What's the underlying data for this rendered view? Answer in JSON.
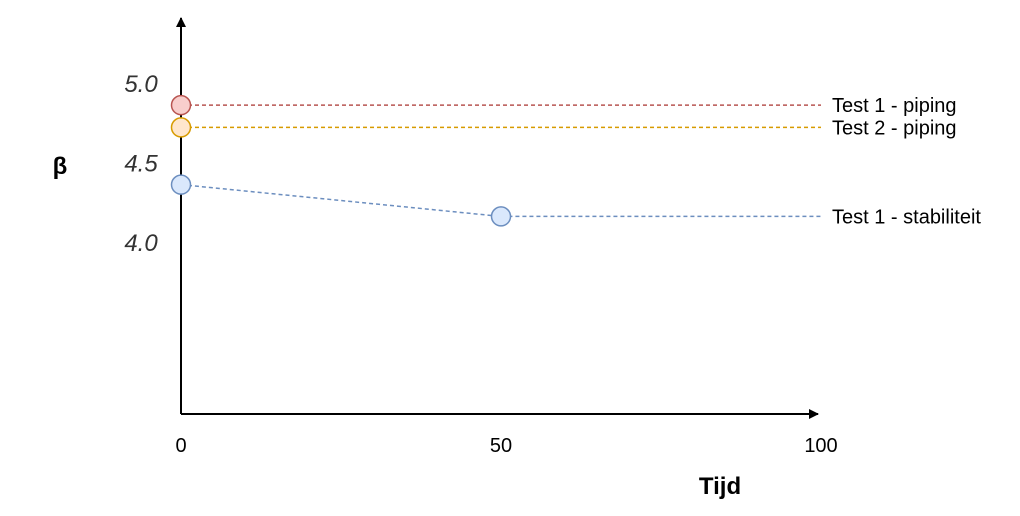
{
  "chart_data": {
    "type": "line",
    "xlabel": "Tijd",
    "ylabel": "β",
    "x_ticks": [
      "0",
      "50",
      "100"
    ],
    "y_ticks": [
      "5.0",
      "4.5",
      "4.0"
    ],
    "xlim": [
      0,
      100
    ],
    "grid": false,
    "series": [
      {
        "name": "Test 1 - piping",
        "line_color": "#b85450",
        "marker_fill": "#f8cecc",
        "points": [
          {
            "x": 0,
            "y": 4.93
          },
          {
            "x": 100,
            "y": 4.93
          }
        ]
      },
      {
        "name": "Test 2 - piping",
        "line_color": "#d79b00",
        "marker_fill": "#ffe6cc",
        "points": [
          {
            "x": 0,
            "y": 4.79
          },
          {
            "x": 100,
            "y": 4.79
          }
        ]
      },
      {
        "name": "Test 1 - stabiliteit",
        "line_color": "#6c8ebf",
        "marker_fill": "#dae8fc",
        "points": [
          {
            "x": 0,
            "y": 4.43
          },
          {
            "x": 50,
            "y": 4.23
          },
          {
            "x": 100,
            "y": 4.23
          }
        ]
      }
    ]
  }
}
